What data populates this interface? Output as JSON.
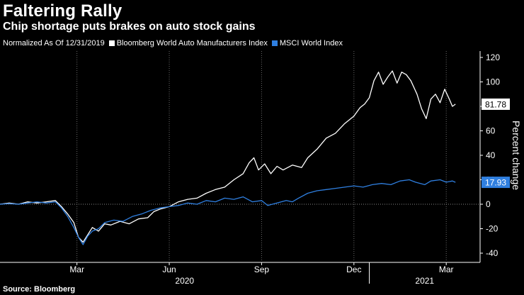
{
  "title": "Faltering Rally",
  "subtitle": "Chip shortage puts brakes on auto stock gains",
  "source": "Source: Bloomberg",
  "legend": {
    "prefix": "Normalized As Of 12/31/2019",
    "items": [
      {
        "name": "Bloomberg World Auto Manufacturers Index",
        "color": "#ffffff"
      },
      {
        "name": "MSCI World Index",
        "color": "#2f7fe0"
      }
    ]
  },
  "chart_data": {
    "type": "line",
    "title": "Faltering Rally",
    "ylabel": "Percent change",
    "ylim": [
      -40,
      120
    ],
    "yticks": [
      -40,
      -20,
      0,
      20,
      40,
      60,
      80,
      100,
      120
    ],
    "xlim": [
      0,
      15.6
    ],
    "month_ticks": [
      {
        "label": "Mar",
        "x": 2.5
      },
      {
        "label": "Jun",
        "x": 5.5
      },
      {
        "label": "Sep",
        "x": 8.5
      },
      {
        "label": "Dec",
        "x": 11.5
      },
      {
        "label": "Mar",
        "x": 14.5
      }
    ],
    "year_labels": [
      {
        "label": "2020",
        "x": 6.0
      },
      {
        "label": "2021",
        "x": 13.8
      }
    ],
    "year_divider_x": 12.0,
    "series": [
      {
        "name": "Bloomberg World Auto Manufacturers Index",
        "color": "#ffffff",
        "last_label": "81.78",
        "points": [
          [
            0,
            0
          ],
          [
            0.3,
            1
          ],
          [
            0.6,
            0
          ],
          [
            0.9,
            2
          ],
          [
            1.2,
            1
          ],
          [
            1.5,
            2
          ],
          [
            1.8,
            3
          ],
          [
            2.0,
            -2
          ],
          [
            2.2,
            -8
          ],
          [
            2.4,
            -15
          ],
          [
            2.55,
            -27
          ],
          [
            2.7,
            -31
          ],
          [
            2.85,
            -25
          ],
          [
            3.0,
            -19
          ],
          [
            3.2,
            -22
          ],
          [
            3.4,
            -16
          ],
          [
            3.6,
            -17
          ],
          [
            3.9,
            -14
          ],
          [
            4.2,
            -16
          ],
          [
            4.5,
            -12
          ],
          [
            4.8,
            -11
          ],
          [
            5.0,
            -6
          ],
          [
            5.2,
            -4
          ],
          [
            5.5,
            -2
          ],
          [
            5.8,
            2
          ],
          [
            6.1,
            4
          ],
          [
            6.4,
            5
          ],
          [
            6.7,
            9
          ],
          [
            7.0,
            12
          ],
          [
            7.3,
            14
          ],
          [
            7.6,
            20
          ],
          [
            7.9,
            25
          ],
          [
            8.1,
            34
          ],
          [
            8.25,
            38
          ],
          [
            8.4,
            28
          ],
          [
            8.6,
            33
          ],
          [
            8.8,
            25
          ],
          [
            9.0,
            31
          ],
          [
            9.2,
            28
          ],
          [
            9.5,
            32
          ],
          [
            9.8,
            30
          ],
          [
            10.0,
            38
          ],
          [
            10.3,
            45
          ],
          [
            10.6,
            54
          ],
          [
            10.9,
            58
          ],
          [
            11.2,
            66
          ],
          [
            11.5,
            72
          ],
          [
            11.7,
            79
          ],
          [
            11.85,
            82
          ],
          [
            12.0,
            87
          ],
          [
            12.15,
            101
          ],
          [
            12.3,
            108
          ],
          [
            12.45,
            98
          ],
          [
            12.6,
            104
          ],
          [
            12.75,
            109
          ],
          [
            12.9,
            99
          ],
          [
            13.05,
            108
          ],
          [
            13.2,
            106
          ],
          [
            13.35,
            101
          ],
          [
            13.55,
            90
          ],
          [
            13.7,
            78
          ],
          [
            13.85,
            70
          ],
          [
            14.0,
            86
          ],
          [
            14.15,
            90
          ],
          [
            14.3,
            83
          ],
          [
            14.45,
            94
          ],
          [
            14.6,
            86
          ],
          [
            14.7,
            80
          ],
          [
            14.8,
            81.78
          ]
        ]
      },
      {
        "name": "MSCI World Index",
        "color": "#2f7fe0",
        "last_label": "17.93",
        "points": [
          [
            0,
            0
          ],
          [
            0.3,
            0.5
          ],
          [
            0.6,
            0
          ],
          [
            0.9,
            1
          ],
          [
            1.2,
            2
          ],
          [
            1.5,
            1
          ],
          [
            1.8,
            2
          ],
          [
            2.0,
            -3
          ],
          [
            2.2,
            -10
          ],
          [
            2.4,
            -19
          ],
          [
            2.55,
            -27
          ],
          [
            2.7,
            -33
          ],
          [
            2.85,
            -26
          ],
          [
            3.0,
            -22
          ],
          [
            3.2,
            -20
          ],
          [
            3.4,
            -15
          ],
          [
            3.7,
            -13
          ],
          [
            4.0,
            -14
          ],
          [
            4.3,
            -10
          ],
          [
            4.6,
            -8
          ],
          [
            4.9,
            -5
          ],
          [
            5.2,
            -3
          ],
          [
            5.5,
            -2
          ],
          [
            5.8,
            -1
          ],
          [
            6.1,
            1
          ],
          [
            6.4,
            0
          ],
          [
            6.7,
            3
          ],
          [
            7.0,
            2
          ],
          [
            7.3,
            5
          ],
          [
            7.6,
            4
          ],
          [
            7.9,
            6
          ],
          [
            8.2,
            2
          ],
          [
            8.5,
            3
          ],
          [
            8.7,
            -1
          ],
          [
            9.0,
            1
          ],
          [
            9.3,
            3
          ],
          [
            9.5,
            2
          ],
          [
            9.7,
            5
          ],
          [
            10.0,
            9
          ],
          [
            10.3,
            11
          ],
          [
            10.6,
            12
          ],
          [
            10.9,
            13
          ],
          [
            11.2,
            14
          ],
          [
            11.5,
            15
          ],
          [
            11.8,
            14
          ],
          [
            12.1,
            16
          ],
          [
            12.4,
            17
          ],
          [
            12.7,
            16
          ],
          [
            13.0,
            19
          ],
          [
            13.3,
            20
          ],
          [
            13.5,
            18
          ],
          [
            13.8,
            16
          ],
          [
            14.0,
            19
          ],
          [
            14.3,
            20
          ],
          [
            14.5,
            18
          ],
          [
            14.7,
            19
          ],
          [
            14.8,
            17.93
          ]
        ]
      }
    ]
  }
}
